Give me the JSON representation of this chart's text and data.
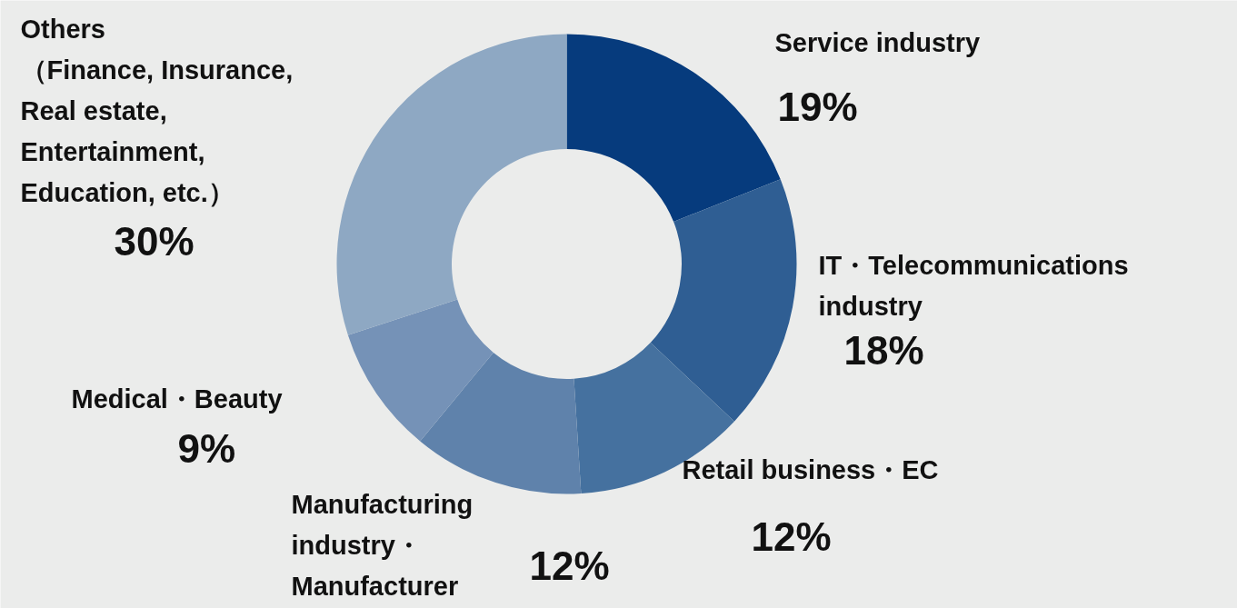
{
  "chart_data": {
    "type": "donut",
    "categories": [
      "Service industry",
      "IT・Telecommunications\nindustry",
      "Retail business・EC",
      "Manufacturing\nindustry・\nManufacturer",
      "Medical・Beauty",
      "Others\n（Finance, Insurance,\n  Real estate,\nEntertainment,\n  Education, etc.）"
    ],
    "values": [
      19,
      18,
      12,
      12,
      9,
      30
    ],
    "colors": [
      "#063b7d",
      "#2f5e93",
      "#45719f",
      "#5f82ab",
      "#7592b7",
      "#8ea8c3"
    ],
    "value_labels": [
      "19%",
      "18%",
      "12%",
      "12%",
      "9%",
      "30%"
    ]
  }
}
